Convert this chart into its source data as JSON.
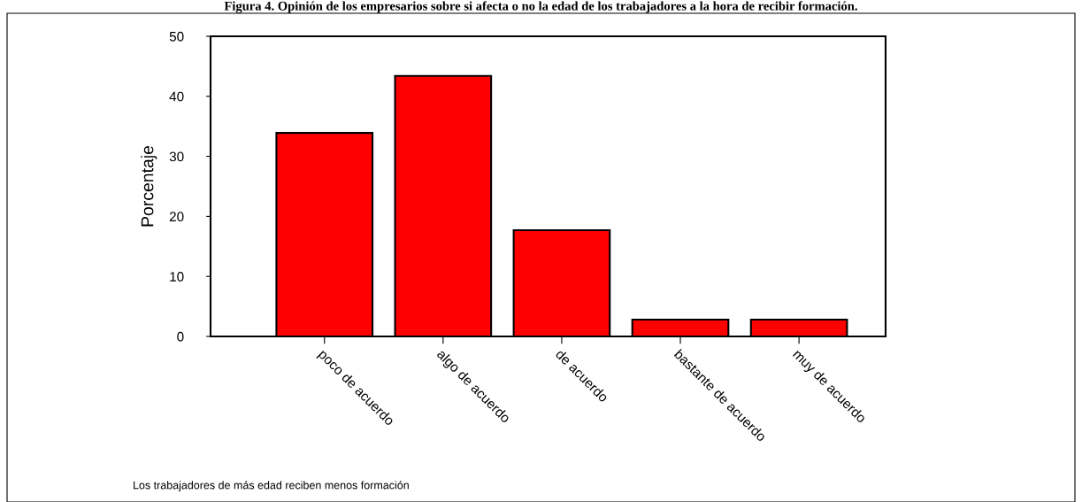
{
  "chart_data": {
    "type": "bar",
    "title": "Figura 4. Opinión de los empresarios sobre si afecta o no la edad de los trabajadores a la hora de recibir formación.",
    "ylabel": "Porcentaje",
    "xlabel": "Los trabajadores de más edad reciben menos formación",
    "categories": [
      "poco de acuerdo",
      "algo de acuerdo",
      "de acuerdo",
      "bastante de acuerdo",
      "muy de acuerdo"
    ],
    "values": [
      33.9,
      43.4,
      17.7,
      2.8,
      2.8
    ],
    "color": "#ff0000",
    "ylim": [
      0,
      50
    ],
    "yticks": [
      0,
      10,
      20,
      30,
      40,
      50
    ],
    "grid": false,
    "legend": false
  }
}
